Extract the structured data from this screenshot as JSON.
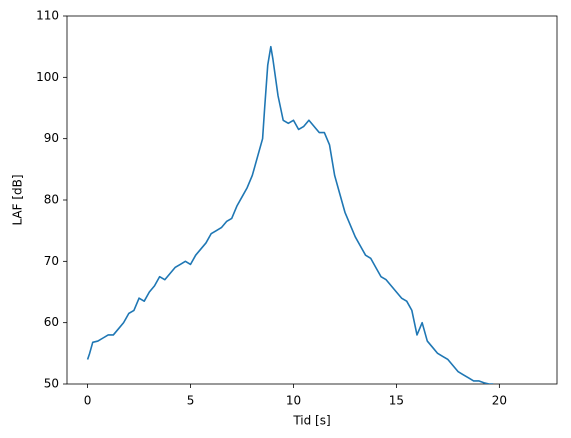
{
  "chart_data": {
    "type": "line",
    "x_label": "Tid [s]",
    "y_label": "LAF [dB]",
    "xlim": [
      -1.0,
      22.8
    ],
    "ylim": [
      50,
      110
    ],
    "xticks": [
      0,
      5,
      10,
      15,
      20
    ],
    "yticks": [
      50,
      60,
      70,
      80,
      90,
      100,
      110
    ],
    "grid": false,
    "series": [
      {
        "color": "#1f77b4",
        "x": [
          0,
          0.1,
          0.25,
          0.5,
          0.75,
          1.0,
          1.25,
          1.5,
          1.75,
          2.0,
          2.25,
          2.5,
          2.75,
          3.0,
          3.25,
          3.5,
          3.75,
          4.0,
          4.25,
          4.5,
          4.75,
          5.0,
          5.25,
          5.5,
          5.75,
          6.0,
          6.25,
          6.5,
          6.75,
          7.0,
          7.25,
          7.5,
          7.75,
          8.0,
          8.25,
          8.5,
          8.6,
          8.75,
          8.9,
          9.0,
          9.25,
          9.5,
          9.75,
          10.0,
          10.25,
          10.5,
          10.75,
          11.0,
          11.25,
          11.5,
          11.75,
          12.0,
          12.25,
          12.5,
          12.75,
          13.0,
          13.25,
          13.5,
          13.75,
          14.0,
          14.25,
          14.5,
          14.75,
          15.0,
          15.25,
          15.5,
          15.75,
          16.0,
          16.25,
          16.5,
          16.75,
          17.0,
          17.25,
          17.5,
          17.75,
          18.0,
          18.25,
          18.5,
          18.75,
          19.0,
          19.25,
          19.5,
          19.7
        ],
        "values": [
          54,
          55,
          56.8,
          57,
          57.5,
          58,
          58,
          59,
          60,
          61.5,
          62,
          64,
          63.5,
          65,
          66,
          67.5,
          67,
          68,
          69,
          69.5,
          70,
          69.5,
          71,
          72,
          73,
          74.5,
          75,
          75.5,
          76.5,
          77,
          79,
          80.5,
          82,
          84,
          87,
          90,
          95,
          102,
          105,
          103,
          97,
          93,
          92.5,
          93,
          91.5,
          92,
          93,
          92,
          91,
          91,
          89,
          84,
          81,
          78,
          76,
          74,
          72.5,
          71,
          70.5,
          69,
          67.5,
          67,
          66,
          65,
          64,
          63.5,
          62,
          58,
          60,
          57,
          56,
          55,
          54.5,
          54,
          53,
          52,
          51.5,
          51,
          50.5,
          50.5,
          50.2,
          50,
          50
        ]
      }
    ]
  }
}
